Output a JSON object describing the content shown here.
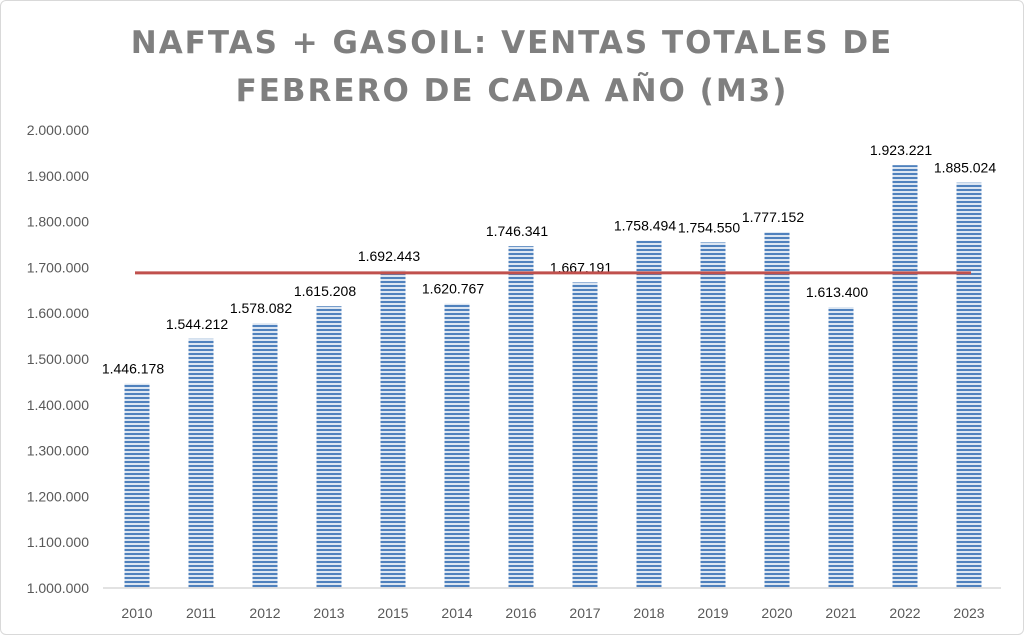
{
  "chart_data": {
    "type": "bar",
    "title_lines": [
      "NAFTAS + GASOIL: VENTAS TOTALES DE",
      "FEBRERO DE CADA AÑO (M3)"
    ],
    "categories": [
      "2010",
      "2011",
      "2012",
      "2013",
      "2015",
      "2014",
      "2016",
      "2017",
      "2018",
      "2019",
      "2020",
      "2021",
      "2022",
      "2023"
    ],
    "values": [
      1446178,
      1544212,
      1578082,
      1615208,
      1692443,
      1620767,
      1746341,
      1667191,
      1758494,
      1754550,
      1777152,
      1613400,
      1923221,
      1885024
    ],
    "data_labels": [
      "1.446.178",
      "1.544.212",
      "1.578.082",
      "1.615.208",
      "1.692.443",
      "1.620.767",
      "1.746.341",
      "1.667.191",
      "1.758.494",
      "1.754.550",
      "1.777.152",
      "1.613.400",
      "1.923.221",
      "1.885.024"
    ],
    "average_line": 1688000,
    "ylim": [
      1000000,
      2000000
    ],
    "yticks": [
      1000000,
      1100000,
      1200000,
      1300000,
      1400000,
      1500000,
      1600000,
      1700000,
      1800000,
      1900000,
      2000000
    ],
    "ytick_labels": [
      "1.000.000",
      "1.100.000",
      "1.200.000",
      "1.300.000",
      "1.400.000",
      "1.500.000",
      "1.600.000",
      "1.700.000",
      "1.800.000",
      "1.900.000",
      "2.000.000"
    ],
    "xlabel": "",
    "ylabel": "",
    "grid": false,
    "colors": {
      "bar": "#4f81bd",
      "bar_light": "#dce6f2",
      "average_line": "#c0504d",
      "title": "#7f7f7f"
    }
  }
}
